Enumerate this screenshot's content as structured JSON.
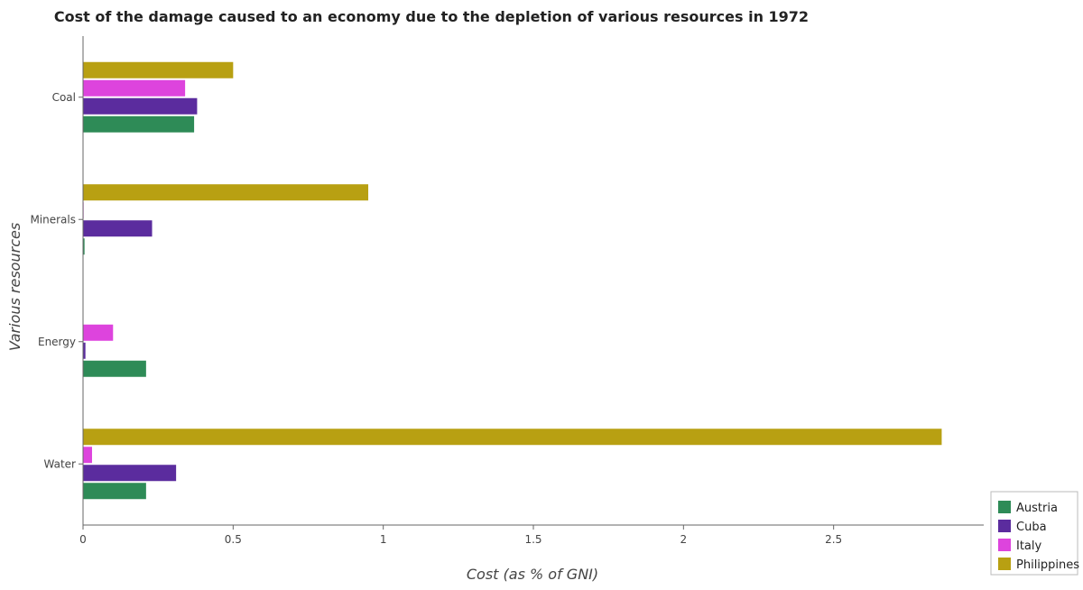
{
  "chart_data": {
    "type": "bar",
    "orientation": "horizontal",
    "title": "Cost of the damage caused to an economy due to the depletion of various resources in 1972",
    "xlabel": "Cost (as % of GNI)",
    "ylabel": "Various resources",
    "categories": [
      "Coal",
      "Minerals",
      "Energy",
      "Water"
    ],
    "xlim": [
      0,
      3.0
    ],
    "xticks": [
      0,
      0.5,
      1,
      1.5,
      2,
      2.5
    ],
    "xtick_labels": [
      "0",
      "0.5",
      "1",
      "1.5",
      "2",
      "2.5"
    ],
    "grid": false,
    "legend_position": "bottom-right",
    "series": [
      {
        "name": "Austria",
        "color": "#2e8b57",
        "values": [
          0.37,
          0.005,
          0.21,
          0.21
        ]
      },
      {
        "name": "Cuba",
        "color": "#5b2c9e",
        "values": [
          0.38,
          0.23,
          0.008,
          0.31
        ]
      },
      {
        "name": "Italy",
        "color": "#dd44dd",
        "values": [
          0.34,
          0.002,
          0.1,
          0.03
        ]
      },
      {
        "name": "Philippines",
        "color": "#b8a012",
        "values": [
          0.5,
          0.95,
          0.0,
          2.86
        ]
      }
    ]
  }
}
